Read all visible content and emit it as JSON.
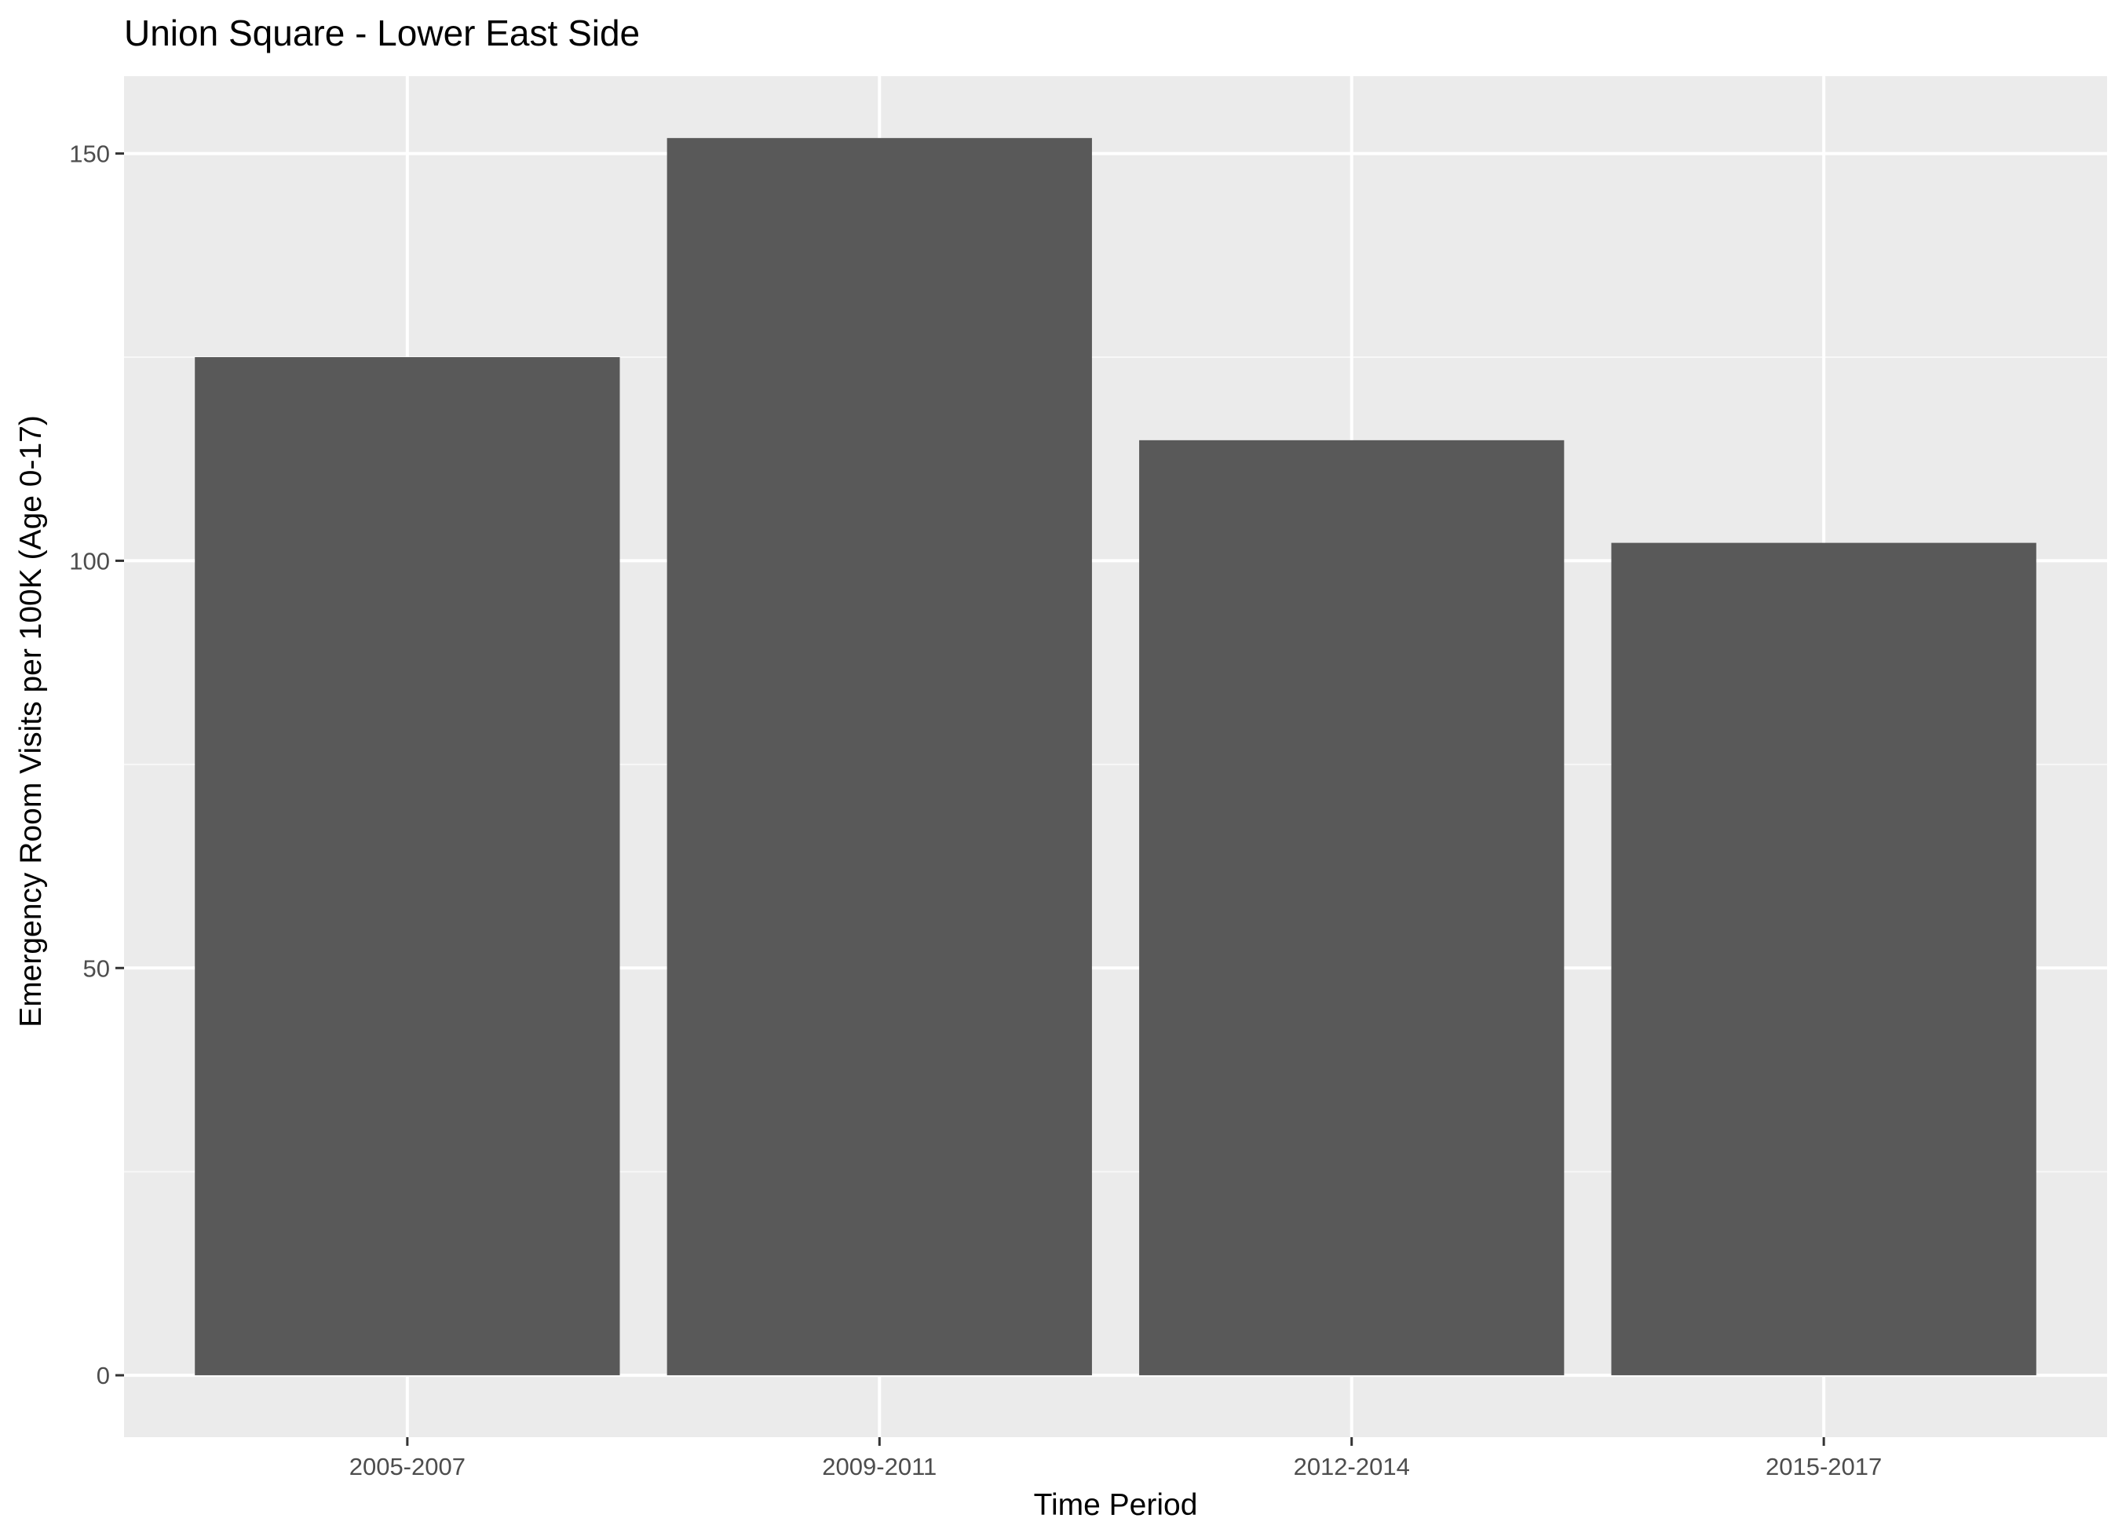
{
  "chart_data": {
    "type": "bar",
    "title": "Union Square - Lower East Side",
    "xlabel": "Time Period",
    "ylabel": "Emergency Room Visits per 100K (Age 0-17)",
    "categories": [
      "2005-2007",
      "2009-2011",
      "2012-2014",
      "2015-2017"
    ],
    "values": [
      125,
      151.9,
      114.8,
      102.2
    ],
    "ylim": [
      -7.6,
      159.5
    ],
    "yticks": [
      0,
      50,
      100,
      150
    ],
    "ytick_labels": [
      "0",
      "50",
      "100",
      "150"
    ],
    "grid": true,
    "legend": "none",
    "colors": {
      "bar": "#595959",
      "panel_background": "#ebebeb",
      "grid_major": "#ffffff",
      "grid_minor": "#f7f7f7",
      "tick": "#333333"
    }
  }
}
